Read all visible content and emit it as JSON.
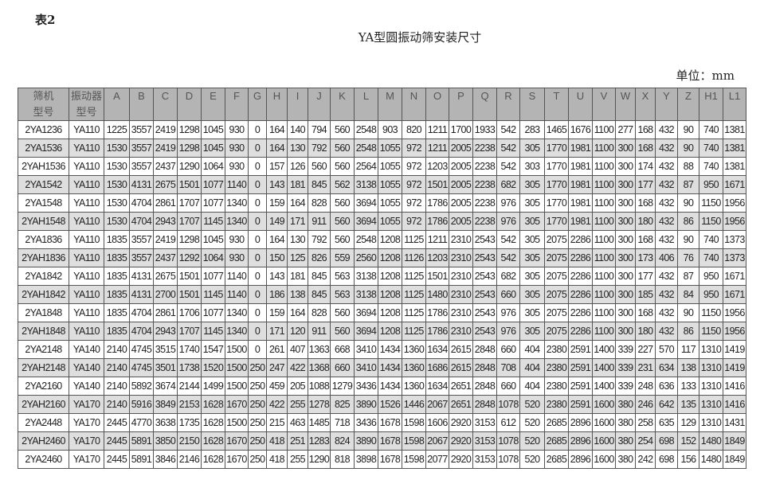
{
  "doc": {
    "label": "表2",
    "title": "YA型圆振动筛安装尺寸",
    "unit": "单位：mm"
  },
  "table": {
    "headers": [
      "筛机\n型号",
      "振动器\n型号",
      "A",
      "B",
      "C",
      "D",
      "E",
      "F",
      "G",
      "H",
      "I",
      "J",
      "K",
      "L",
      "M",
      "N",
      "O",
      "P",
      "Q",
      "R",
      "S",
      "T",
      "U",
      "V",
      "W",
      "X",
      "Y",
      "Z",
      "H1",
      "L1"
    ],
    "rows": [
      [
        "2YA1236",
        "YA110",
        "1225",
        "3557",
        "2419",
        "1298",
        "1045",
        "930",
        "0",
        "164",
        "140",
        "794",
        "560",
        "2548",
        "903",
        "820",
        "1211",
        "1700",
        "1933",
        "542",
        "283",
        "1465",
        "1676",
        "1100",
        "277",
        "168",
        "432",
        "90",
        "740",
        "1381"
      ],
      [
        "2YA1536",
        "YA110",
        "1530",
        "3557",
        "2419",
        "1298",
        "1045",
        "930",
        "0",
        "164",
        "130",
        "792",
        "560",
        "2548",
        "1055",
        "972",
        "1211",
        "2005",
        "2238",
        "542",
        "305",
        "1770",
        "1981",
        "1100",
        "300",
        "168",
        "432",
        "90",
        "740",
        "1381"
      ],
      [
        "2YAH1536",
        "YA110",
        "1530",
        "3557",
        "2437",
        "1290",
        "1064",
        "930",
        "0",
        "157",
        "126",
        "560",
        "560",
        "2564",
        "1055",
        "972",
        "1203",
        "2005",
        "2238",
        "542",
        "303",
        "1770",
        "1981",
        "1100",
        "300",
        "174",
        "432",
        "88",
        "740",
        "1381"
      ],
      [
        "2YA1542",
        "YA110",
        "1530",
        "4131",
        "2675",
        "1501",
        "1077",
        "1140",
        "0",
        "143",
        "181",
        "845",
        "562",
        "3138",
        "1055",
        "972",
        "1501",
        "2005",
        "2238",
        "682",
        "305",
        "1770",
        "1981",
        "1100",
        "300",
        "177",
        "432",
        "87",
        "950",
        "1671"
      ],
      [
        "2YA1548",
        "YA110",
        "1530",
        "4704",
        "2861",
        "1707",
        "1077",
        "1340",
        "0",
        "159",
        "164",
        "828",
        "560",
        "3694",
        "1055",
        "972",
        "1786",
        "2005",
        "2238",
        "976",
        "305",
        "1770",
        "1981",
        "1100",
        "300",
        "168",
        "432",
        "90",
        "1150",
        "1956"
      ],
      [
        "2YAH1548",
        "YA110",
        "1530",
        "4704",
        "2943",
        "1707",
        "1145",
        "1340",
        "0",
        "149",
        "171",
        "911",
        "560",
        "3694",
        "1055",
        "972",
        "1786",
        "2005",
        "2238",
        "976",
        "305",
        "1770",
        "1981",
        "1100",
        "300",
        "180",
        "432",
        "86",
        "1150",
        "1956"
      ],
      [
        "2YA1836",
        "YA110",
        "1835",
        "3557",
        "2419",
        "1298",
        "1045",
        "930",
        "0",
        "164",
        "130",
        "792",
        "560",
        "2548",
        "1208",
        "1125",
        "1211",
        "2310",
        "2543",
        "542",
        "305",
        "2075",
        "2286",
        "1100",
        "300",
        "168",
        "432",
        "90",
        "740",
        "1373"
      ],
      [
        "2YAH1836",
        "YA110",
        "1835",
        "3557",
        "2437",
        "1292",
        "1064",
        "930",
        "0",
        "150",
        "125",
        "826",
        "559",
        "2560",
        "1208",
        "1126",
        "1203",
        "2310",
        "2543",
        "542",
        "305",
        "2075",
        "2286",
        "1100",
        "300",
        "173",
        "406",
        "76",
        "740",
        "1373"
      ],
      [
        "2YA1842",
        "YA110",
        "1835",
        "4131",
        "2675",
        "1501",
        "1077",
        "1140",
        "0",
        "143",
        "181",
        "845",
        "563",
        "3138",
        "1208",
        "1125",
        "1501",
        "2310",
        "2543",
        "682",
        "305",
        "2075",
        "2286",
        "1100",
        "300",
        "177",
        "432",
        "87",
        "950",
        "1671"
      ],
      [
        "2YAH1842",
        "YA110",
        "1835",
        "4131",
        "2700",
        "1501",
        "1145",
        "1140",
        "0",
        "186",
        "138",
        "845",
        "563",
        "3138",
        "1208",
        "1125",
        "1480",
        "2310",
        "2543",
        "660",
        "305",
        "2075",
        "2286",
        "1100",
        "300",
        "185",
        "432",
        "84",
        "950",
        "1671"
      ],
      [
        "2YA1848",
        "YA110",
        "1835",
        "4704",
        "2861",
        "1706",
        "1077",
        "1340",
        "0",
        "159",
        "164",
        "828",
        "560",
        "3694",
        "1208",
        "1125",
        "1786",
        "2310",
        "2543",
        "976",
        "305",
        "2075",
        "2286",
        "1100",
        "300",
        "168",
        "432",
        "90",
        "1150",
        "1956"
      ],
      [
        "2YAH1848",
        "YA110",
        "1835",
        "4704",
        "2943",
        "1707",
        "1145",
        "1340",
        "0",
        "171",
        "120",
        "911",
        "560",
        "3694",
        "1208",
        "1125",
        "1786",
        "2310",
        "2543",
        "976",
        "305",
        "2075",
        "2286",
        "1100",
        "300",
        "180",
        "432",
        "86",
        "1150",
        "1956"
      ],
      [
        "2YA2148",
        "YA140",
        "2140",
        "4745",
        "3515",
        "1740",
        "1547",
        "1500",
        "0",
        "261",
        "407",
        "1363",
        "668",
        "3410",
        "1434",
        "1360",
        "1634",
        "2615",
        "2848",
        "660",
        "404",
        "2380",
        "2591",
        "1400",
        "339",
        "227",
        "570",
        "117",
        "1310",
        "1419"
      ],
      [
        "2YAH2148",
        "YA140",
        "2140",
        "4745",
        "3501",
        "1738",
        "1520",
        "1500",
        "250",
        "247",
        "422",
        "1368",
        "660",
        "3410",
        "1434",
        "1360",
        "1686",
        "2615",
        "2848",
        "708",
        "404",
        "2380",
        "2591",
        "1400",
        "339",
        "231",
        "634",
        "138",
        "1310",
        "1419"
      ],
      [
        "2YA2160",
        "YA140",
        "2140",
        "5892",
        "3674",
        "2144",
        "1499",
        "1500",
        "250",
        "459",
        "205",
        "1088",
        "1279",
        "3436",
        "1434",
        "1360",
        "1634",
        "2651",
        "2848",
        "660",
        "404",
        "2380",
        "2591",
        "1400",
        "339",
        "248",
        "636",
        "133",
        "1310",
        "1416"
      ],
      [
        "2YAH2160",
        "YA170",
        "2140",
        "5916",
        "3849",
        "2153",
        "1628",
        "1670",
        "250",
        "422",
        "255",
        "1278",
        "825",
        "3890",
        "1526",
        "1446",
        "2067",
        "2651",
        "2848",
        "1078",
        "520",
        "2380",
        "2591",
        "1600",
        "380",
        "246",
        "642",
        "135",
        "1310",
        "1416"
      ],
      [
        "2YA2448",
        "YA170",
        "2445",
        "4770",
        "3638",
        "1735",
        "1628",
        "1500",
        "250",
        "215",
        "463",
        "1485",
        "718",
        "3436",
        "1678",
        "1598",
        "1606",
        "2920",
        "3153",
        "612",
        "520",
        "2685",
        "2896",
        "1600",
        "380",
        "258",
        "635",
        "129",
        "1310",
        "1431"
      ],
      [
        "2YAH2460",
        "YA170",
        "2445",
        "5891",
        "3850",
        "2150",
        "1628",
        "1670",
        "250",
        "418",
        "251",
        "1283",
        "824",
        "3890",
        "1678",
        "1598",
        "2067",
        "2920",
        "3153",
        "1078",
        "520",
        "2685",
        "2896",
        "1600",
        "380",
        "254",
        "698",
        "152",
        "1480",
        "1849"
      ],
      [
        "2YA2460",
        "YA170",
        "2445",
        "5891",
        "3846",
        "2146",
        "1628",
        "1670",
        "250",
        "418",
        "255",
        "1290",
        "818",
        "3898",
        "1678",
        "1598",
        "2077",
        "2920",
        "3153",
        "1078",
        "520",
        "2685",
        "2896",
        "1600",
        "380",
        "242",
        "698",
        "156",
        "1480",
        "1849"
      ]
    ]
  }
}
